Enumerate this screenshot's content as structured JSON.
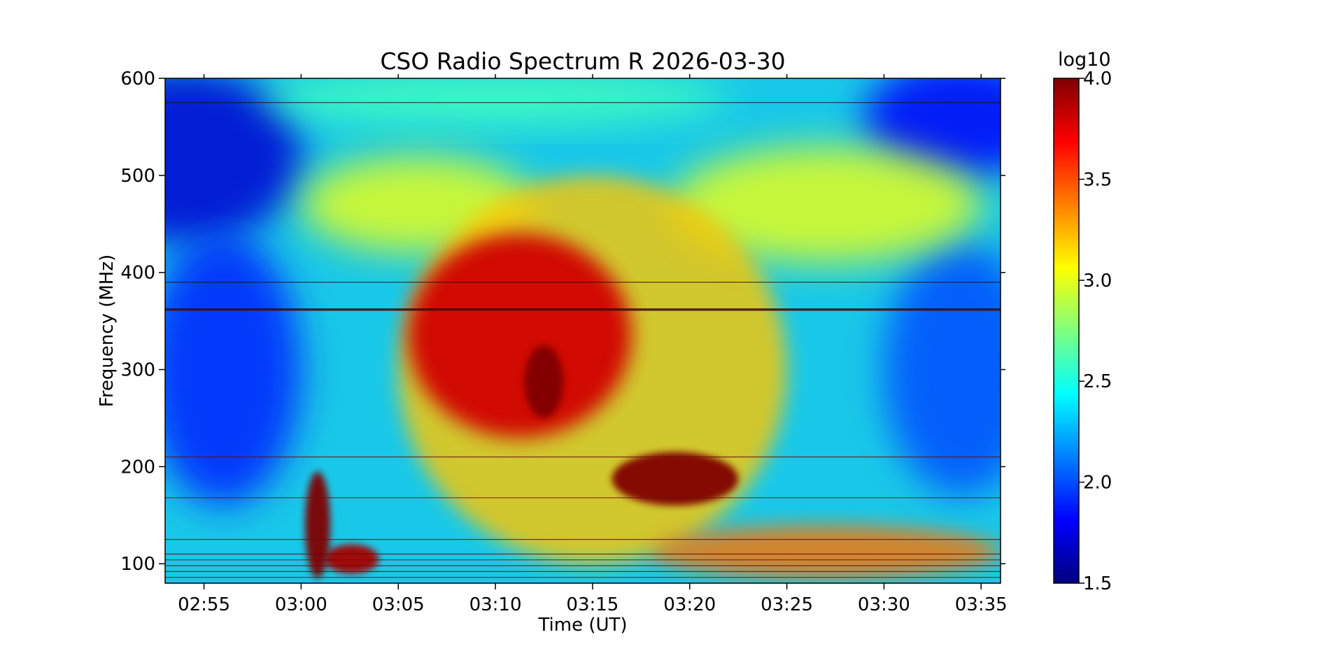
{
  "chart_data": {
    "type": "heatmap",
    "title": "CSO Radio Spectrum R 2026-03-30",
    "xlabel": "Time (UT)",
    "ylabel": "Frequency (MHz)",
    "x_ticks": [
      "02:55",
      "03:00",
      "03:05",
      "03:10",
      "03:15",
      "03:20",
      "03:25",
      "03:30",
      "03:35"
    ],
    "x_tick_minutes": [
      175,
      180,
      185,
      190,
      195,
      200,
      205,
      210,
      215
    ],
    "xlim_minutes": [
      173,
      216
    ],
    "y_ticks": [
      100,
      200,
      300,
      400,
      500,
      600
    ],
    "ylim": [
      80,
      600
    ],
    "colorbar": {
      "label": "log10",
      "ticks": [
        "1.5",
        "2.0",
        "2.5",
        "3.0",
        "3.5",
        "4.0"
      ],
      "range": [
        1.5,
        4.0
      ],
      "colormap": "jet"
    },
    "background_level": 2.3,
    "features": [
      {
        "t0": 180.2,
        "f0": 195,
        "t1": 181.5,
        "f1": 85,
        "level": 4.0
      },
      {
        "t0": 181.2,
        "f0": 120,
        "t1": 184.0,
        "f1": 90,
        "level": 3.9
      },
      {
        "t0": 185.5,
        "f0": 440,
        "t1": 197.0,
        "f1": 230,
        "level": 3.8
      },
      {
        "t0": 191.5,
        "f0": 325,
        "t1": 193.5,
        "f1": 250,
        "level": 4.0
      },
      {
        "t0": 196.0,
        "f0": 215,
        "t1": 202.5,
        "f1": 160,
        "level": 4.0
      },
      {
        "t0": 185.0,
        "f0": 500,
        "t1": 205.0,
        "f1": 100,
        "level": 3.2
      },
      {
        "t0": 198.0,
        "f0": 140,
        "t1": 216.0,
        "f1": 85,
        "level": 3.4
      }
    ]
  }
}
